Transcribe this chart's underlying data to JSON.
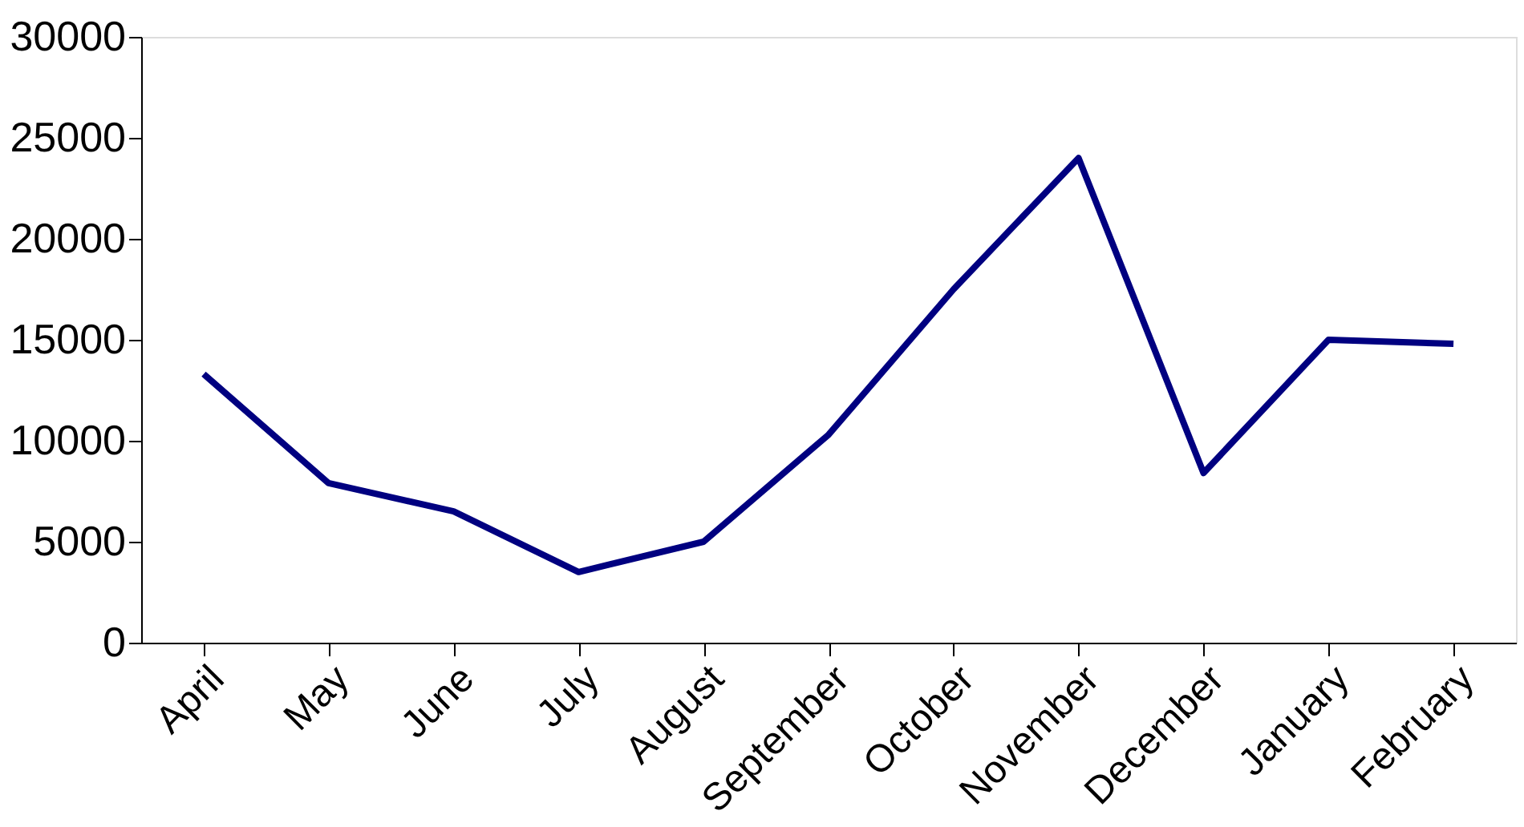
{
  "chart_data": {
    "type": "line",
    "categories": [
      "April",
      "May",
      "June",
      "July",
      "August",
      "September",
      "October",
      "November",
      "December",
      "January",
      "February"
    ],
    "series": [
      {
        "color": "#000080",
        "values": [
          13300,
          7900,
          6500,
          3500,
          5000,
          10300,
          17500,
          24000,
          8400,
          15000,
          14800
        ]
      }
    ],
    "ylim": [
      0,
      30000
    ],
    "yticks": [
      0,
      5000,
      10000,
      15000,
      20000,
      25000,
      30000
    ],
    "grid": false,
    "legend": false,
    "marker": "none",
    "line_style": "solid"
  }
}
